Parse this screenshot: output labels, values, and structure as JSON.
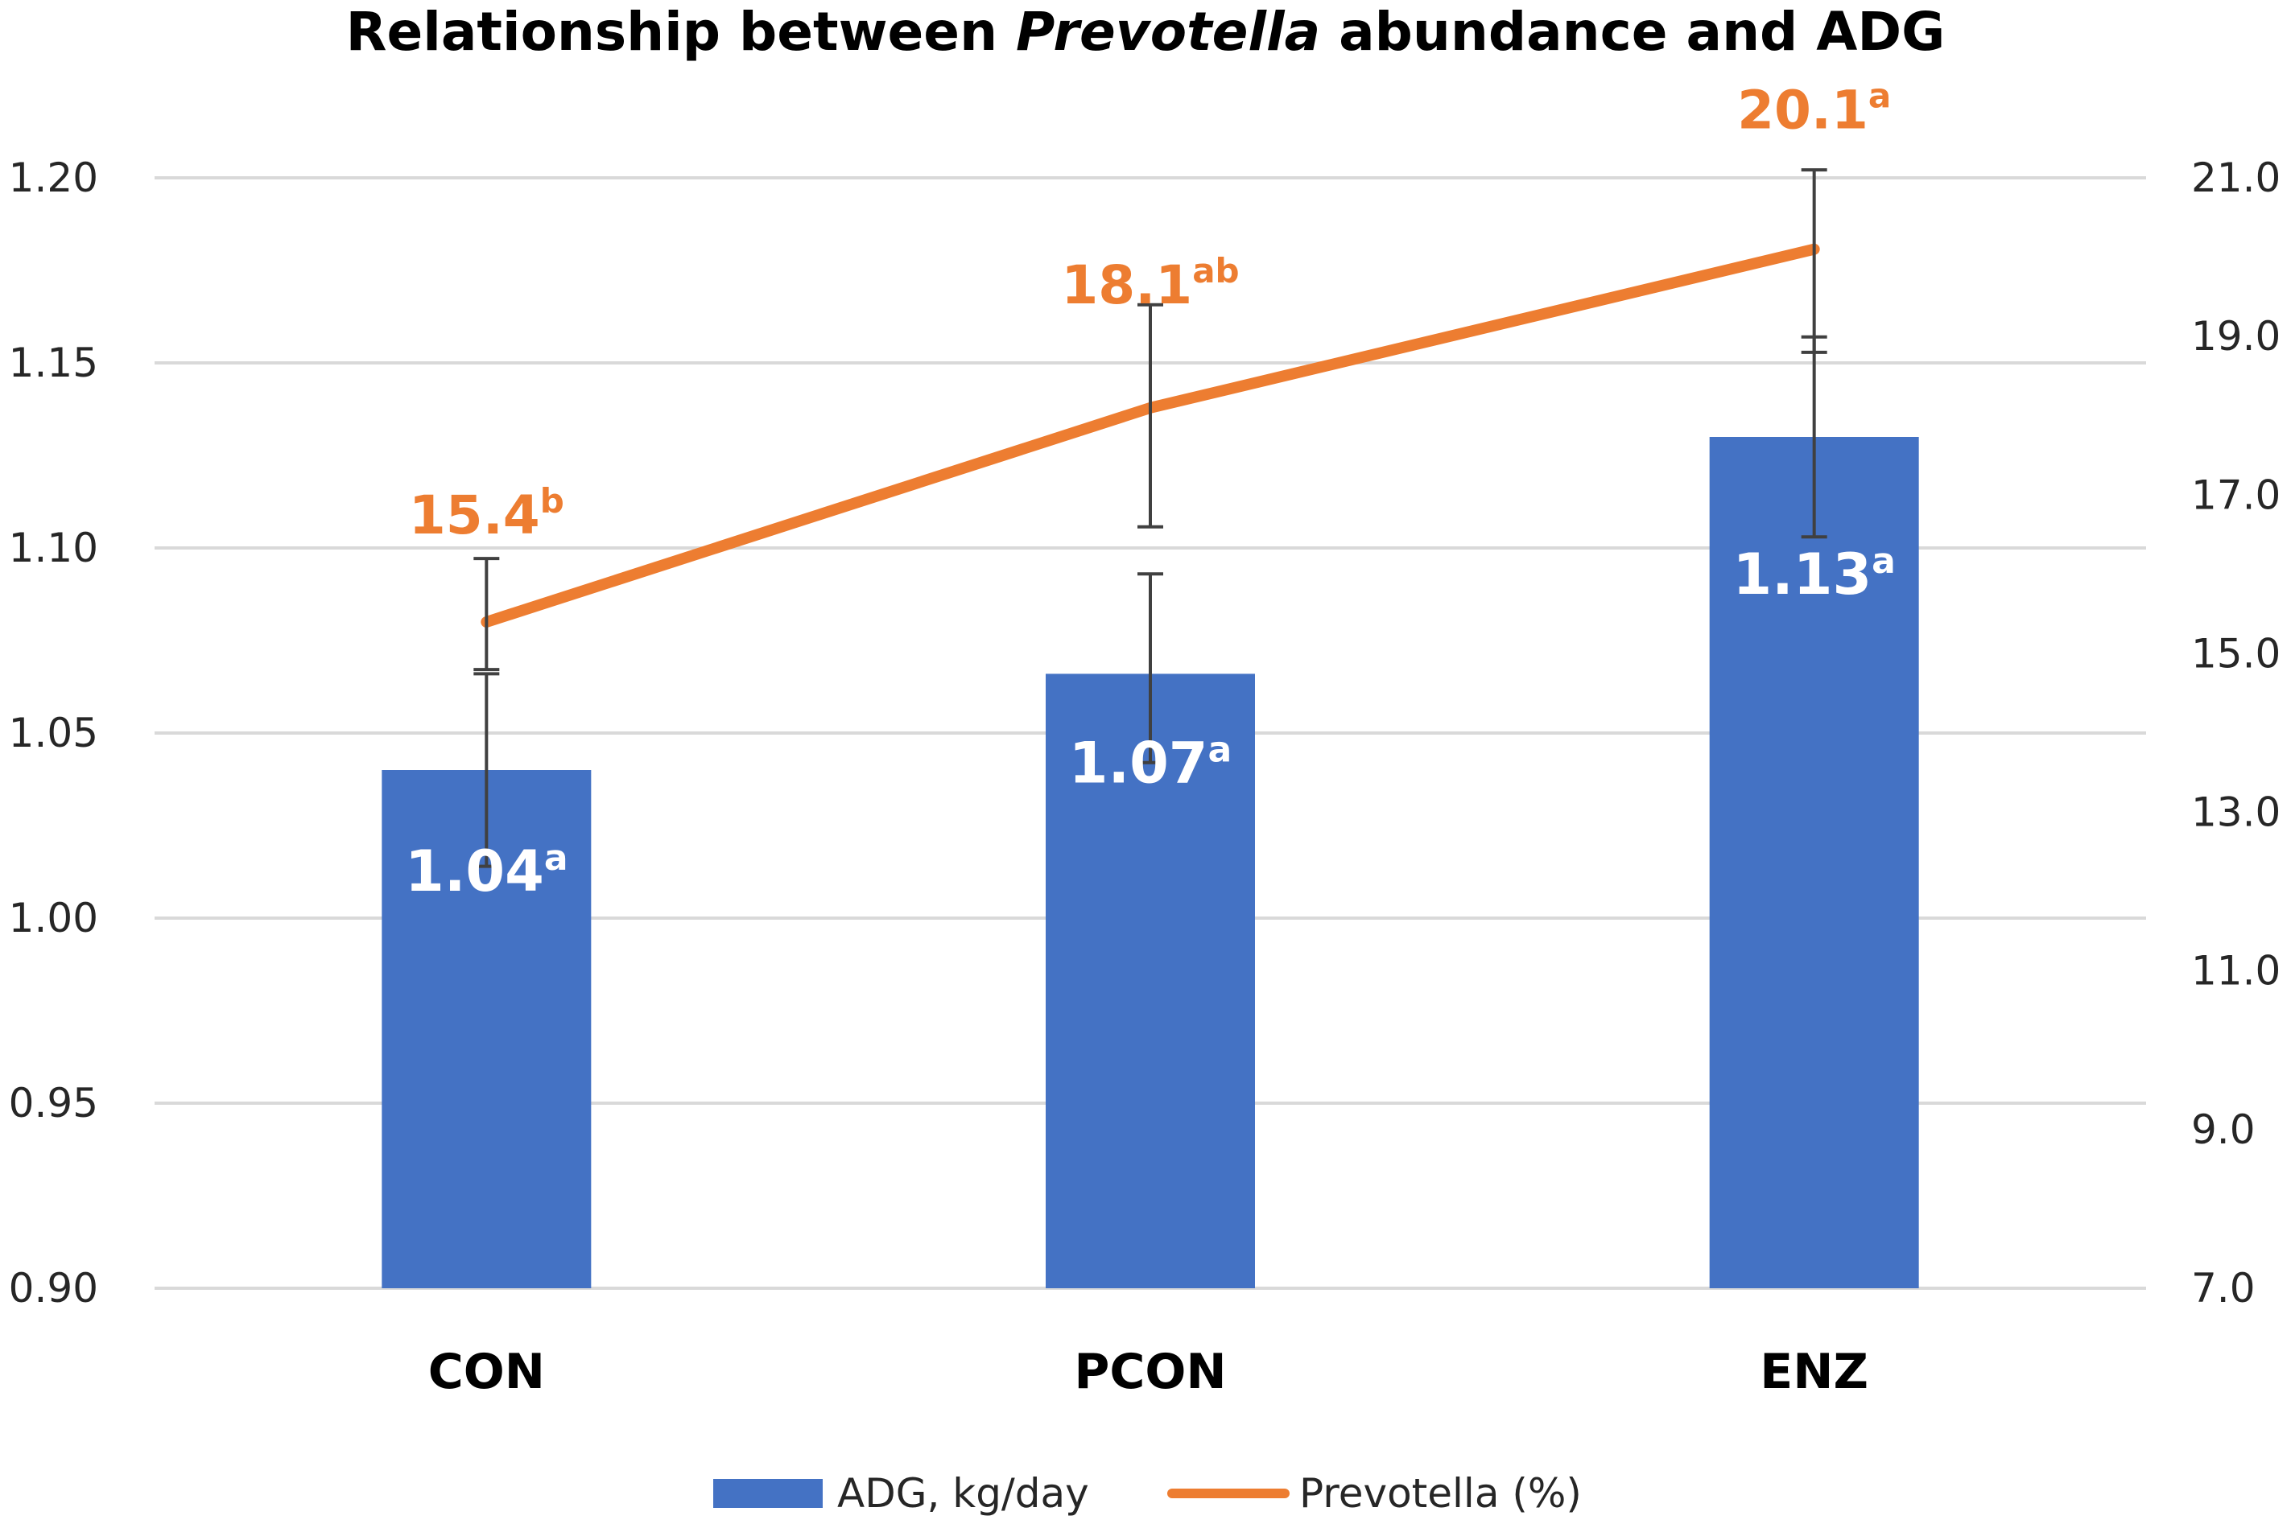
{
  "chart_data": {
    "type": "bar",
    "title": {
      "prefix": "Relationship between ",
      "italic": "Prevotella",
      "suffix": " abundance and ADG"
    },
    "categories": [
      "CON",
      "PCON",
      "ENZ"
    ],
    "series": [
      {
        "name": "ADG, kg/day",
        "type": "bar",
        "axis": "left",
        "color": "#4472C4",
        "values": [
          1.04,
          1.066,
          1.13
        ],
        "error_bars": [
          {
            "low": 1.014,
            "high": 1.066
          },
          {
            "low": 1.042,
            "high": 1.093
          },
          {
            "low": 1.103,
            "high": 1.157
          }
        ],
        "labels": [
          {
            "value": "1.04",
            "superscript": "a"
          },
          {
            "value": "1.07",
            "superscript": "a"
          },
          {
            "value": "1.13",
            "superscript": "a"
          }
        ]
      },
      {
        "name": "Prevotella (%)",
        "type": "line",
        "axis": "right",
        "color": "#ED7D31",
        "values": [
          15.4,
          18.1,
          20.1
        ],
        "error_bars": [
          {
            "low": 14.8,
            "high": 16.2
          },
          {
            "low": 16.6,
            "high": 19.4
          },
          {
            "low": 18.8,
            "high": 21.1
          }
        ],
        "labels": [
          {
            "value": "15.4",
            "superscript": "b"
          },
          {
            "value": "18.1",
            "superscript": "ab"
          },
          {
            "value": "20.1",
            "superscript": "a"
          }
        ]
      }
    ],
    "left_axis": {
      "min": 0.9,
      "max": 1.2,
      "step": 0.05,
      "ticks": [
        "0.90",
        "0.95",
        "1.00",
        "1.05",
        "1.10",
        "1.15",
        "1.20"
      ]
    },
    "right_axis": {
      "min": 7.0,
      "max": 21.0,
      "step": 2.0,
      "ticks": [
        "7.0",
        "9.0",
        "11.0",
        "13.0",
        "15.0",
        "17.0",
        "19.0",
        "21.0"
      ]
    },
    "grid": true,
    "legend": {
      "position": "bottom",
      "items": [
        "ADG, kg/day",
        "Prevotella (%)"
      ]
    }
  }
}
